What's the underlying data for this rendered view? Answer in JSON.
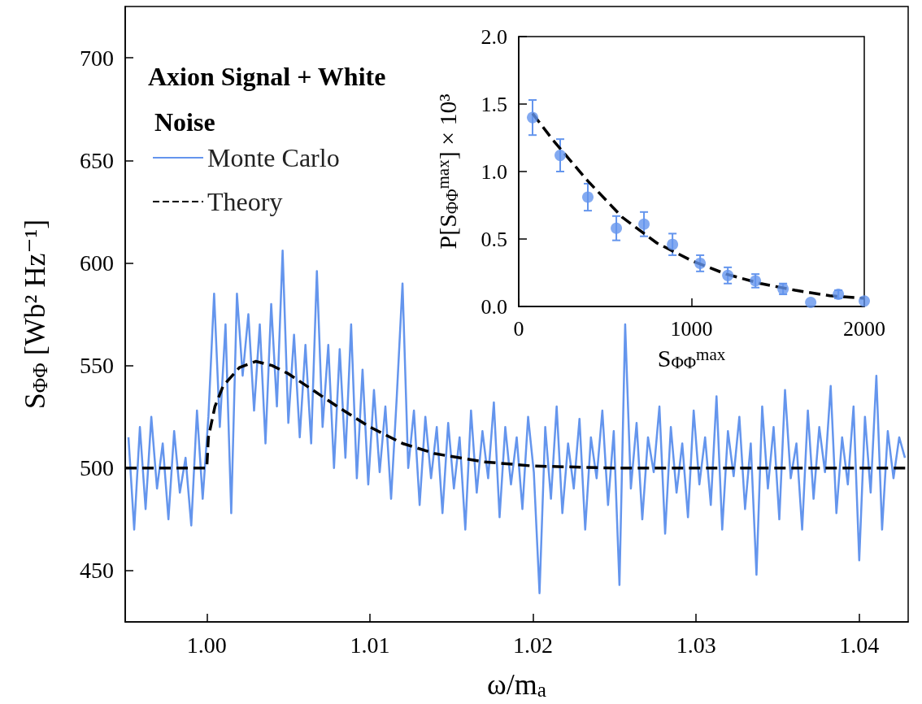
{
  "chart_data": [
    {
      "type": "line",
      "xlabel": "ω/m$_{a}$",
      "ylabel": "S$_{ΦΦ}$ [Wb² Hz⁻¹]",
      "legend_title": "Axion Signal + White Noise",
      "legend": "top left",
      "grid": false,
      "marker": "none",
      "xlim": [
        0.995,
        1.043
      ],
      "ylim": [
        425,
        725
      ],
      "xticks": [
        {
          "value": 1.0,
          "label": "1.00"
        },
        {
          "value": 1.01,
          "label": "1.01"
        },
        {
          "value": 1.02,
          "label": "1.02"
        },
        {
          "value": 1.03,
          "label": "1.03"
        },
        {
          "value": 1.04,
          "label": "1.04"
        }
      ],
      "yticks": [
        450,
        500,
        550,
        600,
        650,
        700
      ],
      "series": [
        {
          "name": "Monte Carlo",
          "color": "#6495ed",
          "line_style": "solid",
          "x": [
            0.9952,
            0.99555,
            0.9959,
            0.99625,
            0.9966,
            0.99695,
            0.9973,
            0.99765,
            0.998,
            0.99835,
            0.9987,
            0.99905,
            0.9994,
            0.99975,
            1.0001,
            1.00045,
            1.0008,
            1.00115,
            1.0015,
            1.00185,
            1.0022,
            1.00255,
            1.0029,
            1.00325,
            1.0036,
            1.00395,
            1.0043,
            1.00465,
            1.005,
            1.00535,
            1.0057,
            1.00605,
            1.0064,
            1.00675,
            1.0071,
            1.00745,
            1.0078,
            1.00815,
            1.0085,
            1.00885,
            1.0092,
            1.00955,
            1.0099,
            1.01025,
            1.0106,
            1.01095,
            1.0113,
            1.01165,
            1.012,
            1.01235,
            1.0127,
            1.01305,
            1.0134,
            1.01375,
            1.0141,
            1.01445,
            1.0148,
            1.01515,
            1.0155,
            1.01585,
            1.0162,
            1.01655,
            1.0169,
            1.01725,
            1.0176,
            1.01795,
            1.0183,
            1.01865,
            1.019,
            1.01935,
            1.0197,
            1.02005,
            1.0204,
            1.02075,
            1.0211,
            1.02145,
            1.0218,
            1.02215,
            1.0225,
            1.02285,
            1.0232,
            1.02355,
            1.0239,
            1.02425,
            1.0246,
            1.02495,
            1.0253,
            1.02565,
            1.026,
            1.02635,
            1.0267,
            1.02705,
            1.0274,
            1.02775,
            1.0281,
            1.02845,
            1.0288,
            1.02915,
            1.0295,
            1.02985,
            1.0302,
            1.03055,
            1.0309,
            1.03125,
            1.0316,
            1.03195,
            1.0323,
            1.03265,
            1.033,
            1.03335,
            1.0337,
            1.03405,
            1.0344,
            1.03475,
            1.0351,
            1.03545,
            1.0358,
            1.03615,
            1.0365,
            1.03685,
            1.0372,
            1.03755,
            1.0379,
            1.03825,
            1.0386,
            1.03895,
            1.0393,
            1.03965,
            1.04,
            1.04035,
            1.0407,
            1.04105,
            1.0414,
            1.04175,
            1.0421,
            1.04245,
            1.0428
          ],
          "values": [
            515,
            470,
            520,
            480,
            525,
            490,
            512,
            475,
            518,
            488,
            505,
            472,
            528,
            485,
            525,
            585,
            520,
            570,
            478,
            585,
            545,
            575,
            528,
            570,
            512,
            580,
            530,
            606,
            522,
            565,
            515,
            560,
            512,
            596,
            520,
            560,
            500,
            558,
            505,
            570,
            495,
            548,
            492,
            538,
            498,
            530,
            485,
            535,
            590,
            500,
            528,
            482,
            525,
            495,
            520,
            478,
            522,
            490,
            515,
            470,
            528,
            488,
            518,
            495,
            532,
            476,
            520,
            492,
            515,
            480,
            525,
            498,
            439,
            520,
            485,
            530,
            478,
            512,
            490,
            524,
            470,
            515,
            495,
            528,
            482,
            518,
            443,
            570,
            490,
            522,
            475,
            515,
            498,
            530,
            468,
            520,
            488,
            512,
            476,
            528,
            492,
            515,
            482,
            535,
            470,
            518,
            496,
            525,
            480,
            512,
            448,
            530,
            490,
            520,
            475,
            538,
            495,
            512,
            470,
            528,
            485,
            520,
            498,
            540,
            478,
            515,
            492,
            530,
            455,
            525,
            488,
            545,
            470,
            518,
            495,
            515,
            505
          ]
        },
        {
          "name": "Theory",
          "color": "#000000",
          "line_style": "dashed",
          "x": [
            0.995,
            1.0,
            1.0001,
            1.0005,
            1.001,
            1.002,
            1.003,
            1.004,
            1.005,
            1.0065,
            1.008,
            1.01,
            1.012,
            1.014,
            1.017,
            1.02,
            1.025,
            1.043
          ],
          "values": [
            500,
            500,
            515,
            530,
            540,
            549,
            552,
            550,
            546,
            538,
            530,
            520,
            512,
            507,
            503,
            501,
            500,
            500
          ]
        }
      ]
    },
    {
      "type": "scatter",
      "xlabel": "S$_{ΦΦ}$$^{max}$",
      "ylabel": "P[S$_{ΦΦ}$$^{max}$] × 10³",
      "grid": false,
      "legend": false,
      "xlim": [
        0,
        2000
      ],
      "ylim": [
        0,
        2
      ],
      "xticks": [
        0,
        1000,
        2000
      ],
      "yticks": [
        {
          "value": 0,
          "label": "0.0"
        },
        {
          "value": 0.5,
          "label": "0.5"
        },
        {
          "value": 1,
          "label": "1.0"
        },
        {
          "value": 1.5,
          "label": "1.5"
        },
        {
          "value": 2,
          "label": "2.0"
        }
      ],
      "series": [
        {
          "color": "#6495ed",
          "marker": "circle",
          "x": [
            80,
            240,
            400,
            565,
            725,
            890,
            1050,
            1210,
            1370,
            1530,
            1690,
            1850,
            2000
          ],
          "values": [
            1.4,
            1.12,
            0.81,
            0.58,
            0.61,
            0.46,
            0.32,
            0.23,
            0.19,
            0.13,
            0.03,
            0.09,
            0.04
          ],
          "errors": [
            0.13,
            0.12,
            0.1,
            0.09,
            0.09,
            0.08,
            0.06,
            0.06,
            0.05,
            0.04,
            null,
            0.03,
            null
          ]
        },
        {
          "type": "line",
          "color": "#000000",
          "line_style": "dashed",
          "marker": "none",
          "x": [
            80,
            200,
            400,
            600,
            800,
            1000,
            1200,
            1400,
            1600,
            1800,
            2000
          ],
          "values": [
            1.43,
            1.23,
            0.93,
            0.66,
            0.47,
            0.34,
            0.24,
            0.17,
            0.12,
            0.08,
            0.06
          ]
        }
      ]
    }
  ]
}
